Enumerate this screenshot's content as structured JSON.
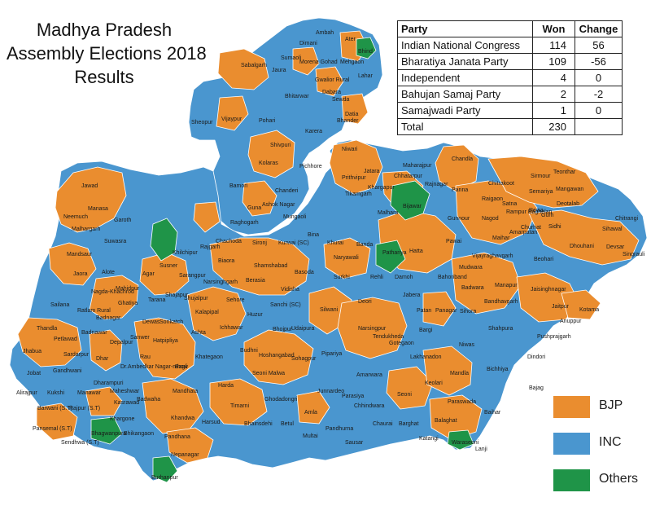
{
  "title": {
    "line1": "Madhya Pradesh",
    "line2": "Assembly Elections 2018",
    "line3": "Results"
  },
  "colors": {
    "bjp": "#ea8d2f",
    "inc": "#4a96cf",
    "others": "#1f9448",
    "border": "#ffffff"
  },
  "results_table": {
    "headers": {
      "party": "Party",
      "won": "Won",
      "change": "Change"
    },
    "rows": [
      {
        "party": "Indian National Congress",
        "won": "114",
        "change": "56"
      },
      {
        "party": "Bharatiya Janata Party",
        "won": "109",
        "change": "-56"
      },
      {
        "party": "Independent",
        "won": "4",
        "change": "0"
      },
      {
        "party": "Bahujan Samaj Party",
        "won": "2",
        "change": "-2"
      },
      {
        "party": "Samajwadi Party",
        "won": "1",
        "change": "0"
      }
    ],
    "total": {
      "label": "Total",
      "won": "230",
      "change": ""
    }
  },
  "legend": [
    {
      "label": "BJP",
      "color": "#ea8d2f"
    },
    {
      "label": "INC",
      "color": "#4a96cf"
    },
    {
      "label": "Others",
      "color": "#1f9448"
    }
  ],
  "constituency_labels": {
    "ambah": "Ambah",
    "ater": "Ater",
    "dimani": "Dimani",
    "bhind": "Bhind",
    "sumaoli": "Sumaoli",
    "mehgaon": "Mehgaon",
    "morena_gohad": "Morena Gohad",
    "sabalgarh": "Sabalgarh",
    "jaura": "Jaura",
    "gwalior_rural": "Gwalior Rural",
    "lahar": "Lahar",
    "bhitarwar": "Bhitarwar",
    "dabara": "Dabara",
    "sewda": "Sewda",
    "sheopur": "Sheopur",
    "vijaypur": "Vijaypur",
    "pohari": "Pohari",
    "datia": "Datia",
    "bhander": "Bhander",
    "karera": "Karera",
    "shivpuri": "Shivpuri",
    "kolaras": "Kolaras",
    "pichhore": "Pichhore",
    "niwari": "Niwari",
    "chandla": "Chandla",
    "jatara": "Jatara",
    "maharajpur": "Maharajpur",
    "chhatarpur": "Chhatarpur",
    "prithvipur": "Prithvipur",
    "khargapur": "Khargapur",
    "rajnagar": "Rajnagar",
    "panna": "Panna",
    "tikamgarh": "Tikamgarh",
    "sirmour": "Sirmour",
    "teonthar": "Teonthar",
    "chitrakoot": "Chitrakoot",
    "semariya": "Semariya",
    "mangawan": "Mangawan",
    "raigaon": "Raigaon",
    "satna": "Satna",
    "deotalab": "Deotalab",
    "bamori": "Bamori",
    "chanderi": "Chanderi",
    "guna": "Guna",
    "ashok_nagar": "Ashok Nagar",
    "raghogarh": "Raghogarh",
    "mungaoli": "Mungaoli",
    "bijawar": "Bijawar",
    "malhara": "Malhara",
    "gunnour": "Gunnour",
    "nagod": "Nagod",
    "rampur_baghelan": "Rampur Baghelan",
    "rewa": "Rewa",
    "gurh": "Gurh",
    "churhat": "Churhat",
    "sidhi": "Sidhi",
    "chitrangi": "Chitrangi",
    "singrauli": "Singrauli",
    "jawad": "Jawad",
    "manasa": "Manasa",
    "neemuch": "Neemuch",
    "garoth": "Garoth",
    "malhargarh": "Malhargarh",
    "suwasra": "Suwasra",
    "mandsaur": "Mandsaur",
    "jaora": "Jaora",
    "alote": "Alote",
    "susner": "Susner",
    "khilchipur": "Khilchipur",
    "rajgarh": "Rajgarh",
    "chachoda": "Chachoda",
    "biaora": "Biaora",
    "sironj": "Sironj",
    "kurwai_sc": "Kurwai (SC)",
    "bina": "Bina",
    "khurai": "Khurai",
    "banda": "Banda",
    "pathariya": "Pathariya",
    "hatta": "Hatta",
    "pawai": "Pawai",
    "amarpatan": "Amarpatan",
    "maihar": "Maihar",
    "beohari": "Beohari",
    "dhouhani": "Dhouhani",
    "devsar": "Devsar",
    "sihawal": "Sihawal",
    "shamshabad": "Shamshabad",
    "naryawali": "Naryawali",
    "rehli": "Rehli",
    "damoh": "Damoh",
    "vijayraghavgarh": "Vijayraghavgarh",
    "mudwara": "Mudwara",
    "bahoriband": "Bahoriband",
    "sarangpur": "Sarangpur",
    "narsinghgarh": "Narsinghgarh",
    "berasia": "Berasia",
    "basoda": "Basoda",
    "surkhi": "Surkhi",
    "mahidpur": "Mahidpur",
    "agar": "Agar",
    "nagda_khachrod": "Nagda-Khachrod",
    "ratlam_rural": "Ratlam Rural",
    "sailana": "Sailana",
    "badnagar": "Badnagar",
    "tarana": "Tarana",
    "ghatiya": "Ghatiya",
    "shajapur": "Shajapur",
    "shujalpur": "Shujalpur",
    "sehore": "Sehore",
    "vidisha": "Vidisha",
    "sanchi_sc": "Sanchi (SC)",
    "deori": "Deori",
    "jabera": "Jabera",
    "manapur": "Manapur",
    "jaisinghnagar": "Jaisinghnagar",
    "jaitpur": "Jaitpur",
    "kotama": "Kotama",
    "anuppur": "Anuppur",
    "thandla": "Thandla",
    "petlawad": "Petlawad",
    "jhabua": "Jhabua",
    "sardarpur": "Sardarpur",
    "dhar": "Dhar",
    "badnawar": "Badnawar",
    "depalpur": "Depalpur",
    "sanwer": "Sanwer",
    "dewas": "Dewas",
    "sonkatch": "Sonkatch",
    "hatpipliya": "Hatpipliya",
    "kalapipal": "Kalapipal",
    "ashta": "Ashta",
    "ichhawar": "Ichhawar",
    "bhojpur": "Bhojpur",
    "silwani": "Silwani",
    "udaipura": "Udaipura",
    "narsingpur": "Narsingpur",
    "patan": "Patan",
    "panagar": "Panagar",
    "bargi": "Bargi",
    "sihora": "Sihora",
    "bandhavgarh": "Bandhavgarh",
    "badwara": "Badwara",
    "shahpura": "Shahpura",
    "pushprajgarh": "Pushprajgarh",
    "rau": "Rau",
    "mhow": "Dr.Ambedkar Nagar-mhow",
    "khategaon": "Khategaon",
    "budhni": "Budhni",
    "hoshangabad": "Hoshangabad",
    "sohagpur": "Sohagpur",
    "pipariya": "Pipariya",
    "tendukheda": "Tendukheda",
    "gotegaon": "Gotegaon",
    "lakhanadon": "Lakhanadon",
    "niwas": "Niwas",
    "dindori": "Dindori",
    "jobat": "Jobat",
    "gandhwani": "Gandhwani",
    "kukshi": "Kukshi",
    "dharampuri": "Dharampuri",
    "alirajpur": "Alirajpur",
    "manawar": "Manawar",
    "maheshwar": "Maheshwar",
    "badwaha": "Badwaha",
    "bagli": "Bagli",
    "harda": "Harda",
    "seoni_malwa": "Seoni Malwa",
    "timarni": "Timarni",
    "ghodadongri": "Ghodadongri",
    "junnardeo": "Junnardeo",
    "amarwara": "Amarwara",
    "parasiya": "Parasiya",
    "chhindwara": "Chhindwara",
    "seoni": "Seoni",
    "keolari": "Keolari",
    "mandla": "Mandla",
    "bichhiya": "Bichhiya",
    "paraswada": "Paraswada",
    "bajag": "Bajag",
    "barwani": "Barwani (S.T)",
    "rajpur": "Rajpur (S.T)",
    "kasrawad": "Kasrawad",
    "khargone": "Khargone",
    "mandhata": "Mandhata",
    "khandwa": "Khandwa",
    "harsud": "Harsud",
    "amla": "Amla",
    "bhainsdehi": "Bhainsdehi",
    "betul": "Betul",
    "pandhurna": "Pandhurna",
    "multai": "Multai",
    "sausar": "Sausar",
    "chaurai": "Chaurai",
    "barghat": "Barghat",
    "balaghat": "Balaghat",
    "katangi": "Katangi",
    "waraseoni": "Waraseoni",
    "lanji": "Lanji",
    "baihar": "Baihar",
    "pansemal": "Pansemal (S.T)",
    "sendhwa": "Sendhwa (S.T)",
    "bhagwanpura": "Bhagwanpura",
    "bhikangaon": "Bhikangaon",
    "pandhana": "Pandhana",
    "nepanagar": "Nepanagar",
    "burhanpur": "Burhanpur",
    "huzur": "Huzur"
  }
}
